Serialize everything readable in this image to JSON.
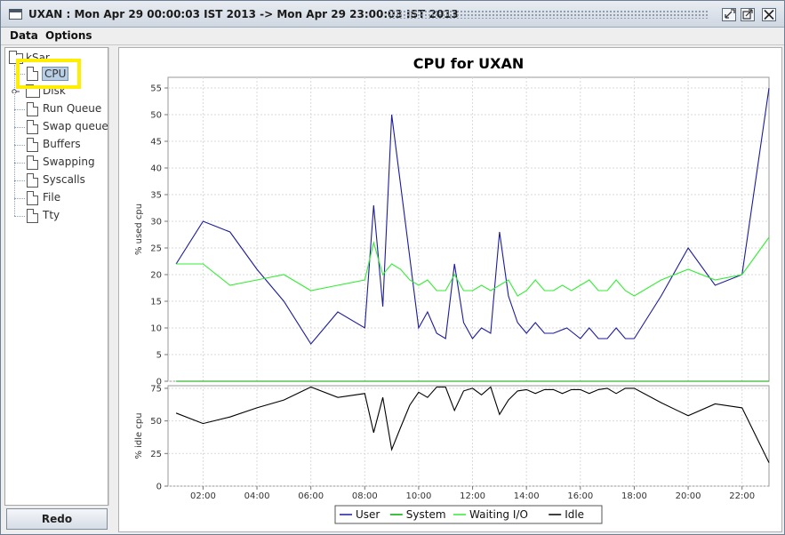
{
  "window": {
    "title": "UXAN : Mon Apr 29 00:00:03 IST 2013 -> Mon Apr 29 23:00:03 IST 2013"
  },
  "menu": {
    "items": [
      "Data",
      "Options"
    ]
  },
  "tree": {
    "root": "kSar",
    "items": [
      {
        "label": "CPU",
        "selected": true
      },
      {
        "label": "Disk",
        "expandable": true
      },
      {
        "label": "Run Queue"
      },
      {
        "label": "Swap queue"
      },
      {
        "label": "Buffers"
      },
      {
        "label": "Swapping"
      },
      {
        "label": "Syscalls"
      },
      {
        "label": "File"
      },
      {
        "label": "Tty"
      }
    ]
  },
  "buttons": {
    "redo": "Redo"
  },
  "chart_data": [
    {
      "type": "line",
      "title": "CPU for UXAN",
      "ylabel": "% used cpu",
      "ylim": [
        0,
        57
      ],
      "yticks": [
        0,
        5,
        10,
        15,
        20,
        25,
        30,
        35,
        40,
        45,
        50,
        55
      ],
      "xticks": [
        "02:00",
        "04:00",
        "06:00",
        "08:00",
        "10:00",
        "12:00",
        "14:00",
        "16:00",
        "18:00",
        "20:00",
        "22:00"
      ],
      "xlim": [
        0.7,
        23.0
      ],
      "grid": true,
      "series": [
        {
          "name": "User",
          "color": "#1c1c9c",
          "x": [
            1.0,
            2.0,
            3.0,
            4.0,
            5.0,
            6.0,
            7.0,
            8.0,
            8.33,
            8.67,
            9.0,
            9.5,
            10.0,
            10.33,
            10.67,
            11.0,
            11.33,
            11.67,
            12.0,
            12.33,
            12.67,
            13.0,
            13.33,
            13.67,
            14.0,
            14.33,
            14.67,
            15.0,
            15.5,
            16.0,
            16.33,
            16.67,
            17.0,
            17.33,
            17.67,
            18.0,
            19.0,
            20.0,
            21.0,
            22.0,
            23.0
          ],
          "y": [
            22,
            30,
            28,
            21,
            15,
            7,
            13,
            10,
            33,
            14,
            50,
            30,
            10,
            13,
            9,
            8,
            22,
            11,
            8,
            10,
            9,
            28,
            16,
            11,
            9,
            11,
            9,
            9,
            10,
            8,
            10,
            8,
            8,
            10,
            8,
            8,
            16,
            25,
            18,
            20,
            55
          ]
        },
        {
          "name": "System",
          "color": "#00aa00",
          "x": [
            1.0,
            23.0
          ],
          "y": [
            0,
            0
          ]
        },
        {
          "name": "Waiting I/O",
          "color": "#33ee33",
          "x": [
            1.0,
            2.0,
            3.0,
            4.0,
            5.0,
            6.0,
            7.0,
            8.0,
            8.33,
            8.67,
            9.0,
            9.33,
            9.67,
            10.0,
            10.33,
            10.67,
            11.0,
            11.33,
            11.67,
            12.0,
            12.33,
            12.67,
            13.0,
            13.33,
            13.67,
            14.0,
            14.33,
            14.67,
            15.0,
            15.33,
            15.67,
            16.0,
            16.33,
            16.67,
            17.0,
            17.33,
            17.67,
            18.0,
            19.0,
            20.0,
            21.0,
            22.0,
            23.0
          ],
          "y": [
            22,
            22,
            18,
            19,
            20,
            17,
            18,
            19,
            26,
            20,
            22,
            21,
            19,
            18,
            19,
            17,
            17,
            20,
            17,
            17,
            18,
            17,
            18,
            19,
            16,
            17,
            19,
            17,
            17,
            18,
            17,
            18,
            19,
            17,
            17,
            19,
            17,
            16,
            19,
            21,
            19,
            20,
            27
          ]
        }
      ]
    },
    {
      "type": "line",
      "ylabel": "% idle cpu",
      "ylim": [
        0,
        77
      ],
      "yticks": [
        0,
        25,
        50,
        75
      ],
      "xticks": [
        "02:00",
        "04:00",
        "06:00",
        "08:00",
        "10:00",
        "12:00",
        "14:00",
        "16:00",
        "18:00",
        "20:00",
        "22:00"
      ],
      "xlim": [
        0.7,
        23.0
      ],
      "grid": true,
      "series": [
        {
          "name": "Idle",
          "color": "#000000",
          "x": [
            1.0,
            2.0,
            3.0,
            4.0,
            5.0,
            6.0,
            7.0,
            8.0,
            8.33,
            8.67,
            9.0,
            9.33,
            9.67,
            10.0,
            10.33,
            10.67,
            11.0,
            11.33,
            11.67,
            12.0,
            12.33,
            12.67,
            13.0,
            13.33,
            13.67,
            14.0,
            14.33,
            14.67,
            15.0,
            15.33,
            15.67,
            16.0,
            16.33,
            16.67,
            17.0,
            17.33,
            17.67,
            18.0,
            19.0,
            20.0,
            21.0,
            22.0,
            23.0
          ],
          "y": [
            56,
            48,
            53,
            60,
            66,
            76,
            68,
            71,
            41,
            68,
            28,
            45,
            62,
            72,
            68,
            76,
            76,
            58,
            73,
            75,
            70,
            76,
            55,
            66,
            73,
            74,
            71,
            74,
            74,
            71,
            74,
            74,
            71,
            74,
            75,
            71,
            75,
            75,
            64,
            54,
            63,
            60,
            18
          ]
        }
      ]
    }
  ],
  "legend": {
    "items": [
      {
        "label": "User",
        "color": "#1c1c9c"
      },
      {
        "label": "System",
        "color": "#00aa00"
      },
      {
        "label": "Waiting I/O",
        "color": "#33ee33"
      },
      {
        "label": "Idle",
        "color": "#000000"
      }
    ]
  }
}
